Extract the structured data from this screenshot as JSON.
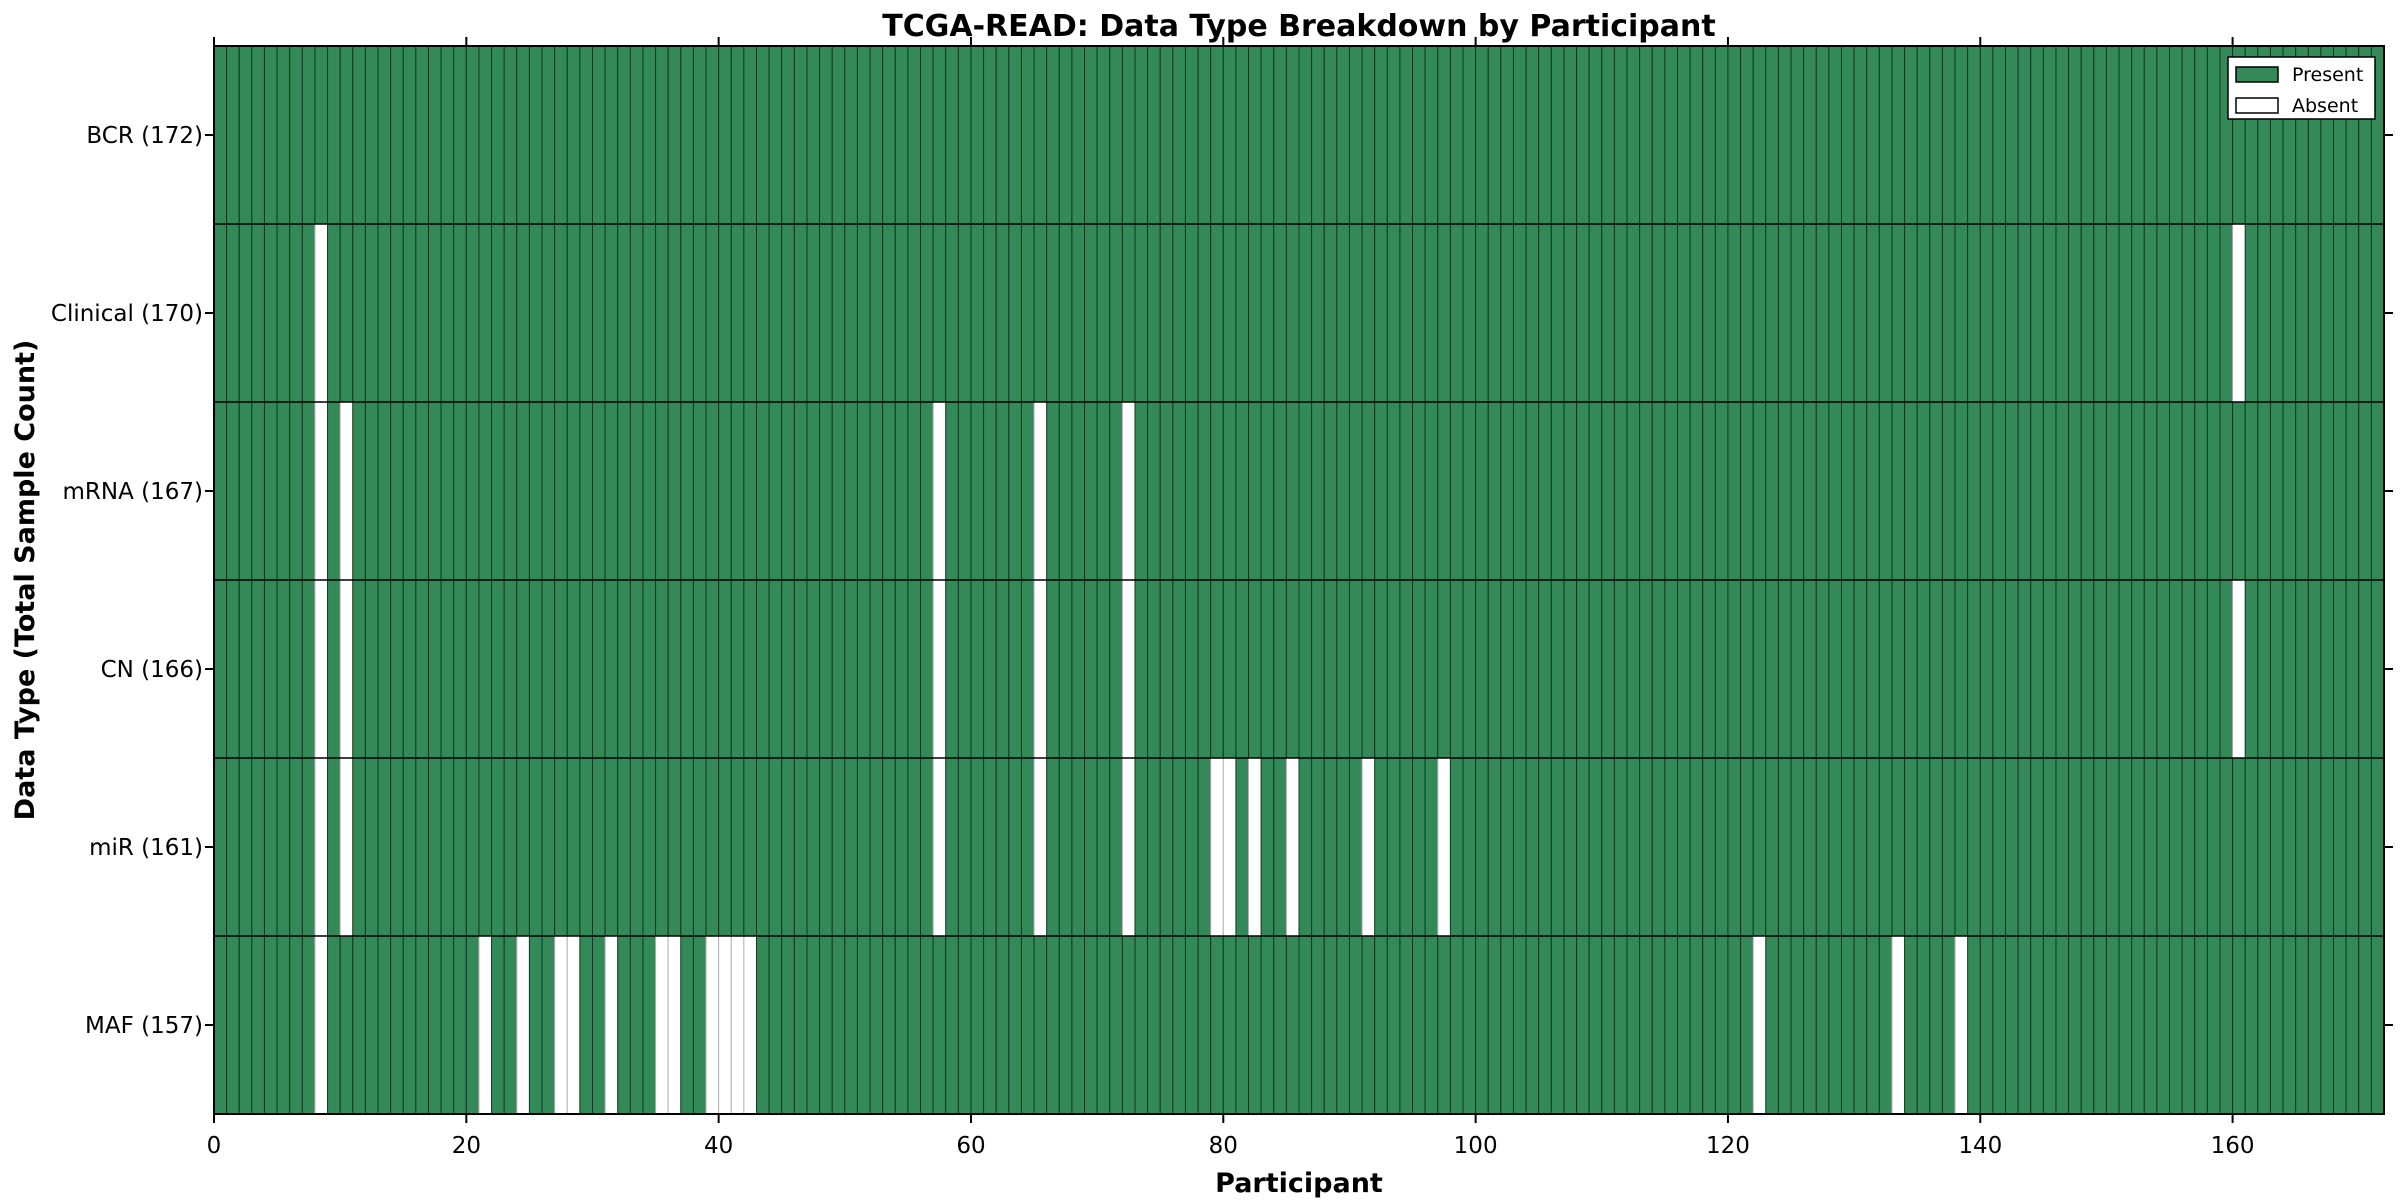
{
  "chart_data": {
    "type": "heatmap",
    "title": "TCGA-READ: Data Type Breakdown by Participant",
    "xlabel": "Participant",
    "ylabel": "Data Type (Total Sample Count)",
    "x_ticks": [
      0,
      20,
      40,
      60,
      80,
      100,
      120,
      140,
      160
    ],
    "xlim": [
      0,
      172
    ],
    "n_participants": 172,
    "grid": "off",
    "legend_position": "upper right",
    "legend": [
      {
        "label": "Present",
        "color": "#338a58"
      },
      {
        "label": "Absent",
        "color": "#ffffff"
      }
    ],
    "colors": {
      "present": "#338a58",
      "absent": "#ffffff",
      "cell_edge": "#10391f",
      "absent_edge": "#b3b3b3",
      "row_line": "#000000",
      "frame": "#000000"
    },
    "rows": [
      {
        "label": "BCR (172)",
        "data_type": "BCR",
        "total": 172,
        "absent_participants": []
      },
      {
        "label": "Clinical (170)",
        "data_type": "Clinical",
        "total": 170,
        "absent_participants": [
          8,
          160
        ]
      },
      {
        "label": "mRNA (167)",
        "data_type": "mRNA",
        "total": 167,
        "absent_participants": [
          8,
          10,
          57,
          65,
          72
        ]
      },
      {
        "label": "CN (166)",
        "data_type": "CN",
        "total": 166,
        "absent_participants": [
          8,
          10,
          57,
          65,
          72,
          160
        ]
      },
      {
        "label": "miR (161)",
        "data_type": "miR",
        "total": 161,
        "absent_participants": [
          8,
          10,
          57,
          65,
          72,
          79,
          80,
          82,
          85,
          91,
          97
        ]
      },
      {
        "label": "MAF (157)",
        "data_type": "MAF",
        "total": 157,
        "absent_participants": [
          8,
          21,
          24,
          27,
          28,
          31,
          35,
          36,
          39,
          40,
          41,
          42,
          122,
          133,
          138
        ]
      }
    ]
  }
}
